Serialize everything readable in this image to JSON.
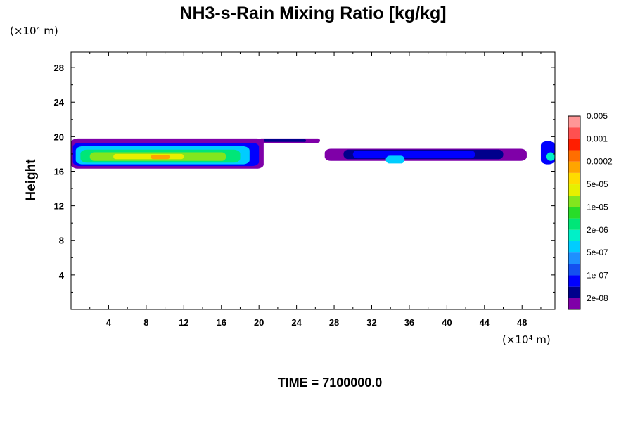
{
  "chart_data": {
    "type": "heatmap",
    "title": "NH3-s-Rain Mixing Ratio [kg/kg]",
    "ylabel": "Height",
    "x_unit": "(×10⁴ m)",
    "y_unit": "(×10⁴ m)",
    "footer": "TIME = 7100000.0",
    "xlim": [
      0,
      51.5
    ],
    "ylim": [
      0,
      29.8
    ],
    "x_ticks": [
      4,
      8,
      12,
      16,
      20,
      24,
      28,
      32,
      36,
      40,
      44,
      48
    ],
    "x_tick_labels": [
      "4",
      "8",
      "12",
      "16",
      "20",
      "24",
      "28",
      "32",
      "36",
      "40",
      "44",
      "48"
    ],
    "y_ticks": [
      4,
      8,
      12,
      16,
      20,
      24,
      28
    ],
    "y_tick_labels": [
      "4",
      "8",
      "12",
      "16",
      "20",
      "24",
      "28"
    ],
    "colorbar": {
      "colors": [
        "#7f00a8",
        "#00008c",
        "#0000ff",
        "#1450f0",
        "#1e90ff",
        "#00cdff",
        "#00f0c8",
        "#00e678",
        "#28dc28",
        "#82e61e",
        "#e6f000",
        "#ffdc00",
        "#ffa500",
        "#ff6e00",
        "#ff1e00",
        "#ff5050",
        "#ff9696"
      ],
      "labels": [
        "2e-08",
        "1e-07",
        "5e-07",
        "2e-06",
        "1e-05",
        "5e-05",
        "0.0002",
        "0.001",
        "0.005"
      ]
    },
    "regions": [
      {
        "x0": 0.0,
        "x1": 20.5,
        "y0": 16.3,
        "y1": 19.8,
        "level": 0
      },
      {
        "x0": 0.2,
        "x1": 20.0,
        "y0": 16.6,
        "y1": 19.3,
        "level": 2
      },
      {
        "x0": 0.5,
        "x1": 19.0,
        "y0": 16.8,
        "y1": 18.9,
        "level": 5
      },
      {
        "x0": 1.0,
        "x1": 18.0,
        "y0": 17.0,
        "y1": 18.5,
        "level": 7
      },
      {
        "x0": 2.0,
        "x1": 16.5,
        "y0": 17.2,
        "y1": 18.2,
        "level": 9
      },
      {
        "x0": 4.5,
        "x1": 12.0,
        "y0": 17.4,
        "y1": 18.0,
        "level": 10
      },
      {
        "x0": 8.5,
        "x1": 10.5,
        "y0": 17.4,
        "y1": 17.9,
        "level": 12
      },
      {
        "x0": 20.0,
        "x1": 26.5,
        "y0": 19.3,
        "y1": 19.8,
        "level": 0
      },
      {
        "x0": 20.5,
        "x1": 25.0,
        "y0": 19.4,
        "y1": 19.7,
        "level": 1
      },
      {
        "x0": 27.0,
        "x1": 48.5,
        "y0": 17.2,
        "y1": 18.6,
        "level": 0
      },
      {
        "x0": 29.0,
        "x1": 46.0,
        "y0": 17.4,
        "y1": 18.5,
        "level": 1
      },
      {
        "x0": 30.0,
        "x1": 43.0,
        "y0": 17.5,
        "y1": 18.4,
        "level": 2
      },
      {
        "x0": 33.5,
        "x1": 35.5,
        "y0": 16.9,
        "y1": 17.8,
        "level": 5
      },
      {
        "x0": 50.0,
        "x1": 51.5,
        "y0": 16.8,
        "y1": 19.5,
        "level": 2
      },
      {
        "x0": 50.6,
        "x1": 51.5,
        "y0": 17.2,
        "y1": 18.2,
        "level": 6
      }
    ]
  }
}
